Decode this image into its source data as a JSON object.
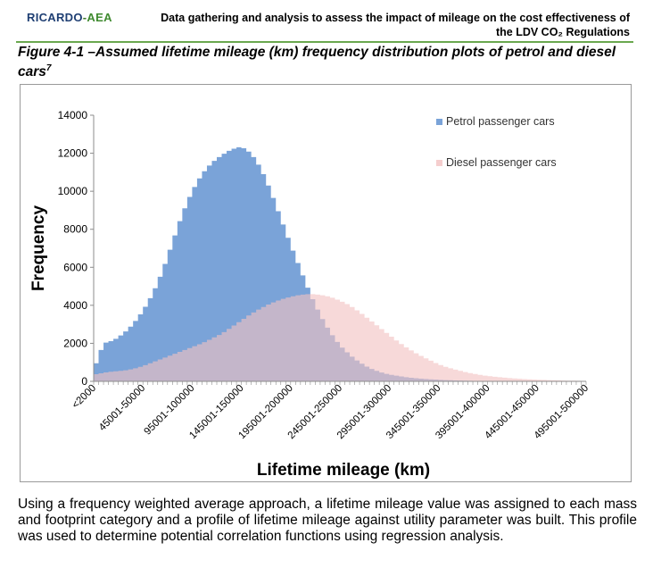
{
  "header": {
    "logo_main": "RICARDO",
    "logo_dash": "-",
    "logo_sub": "AEA",
    "title_line1": "Data gathering and analysis to assess the impact of mileage on the cost effectiveness of",
    "title_line2": "the LDV CO₂ Regulations"
  },
  "figure": {
    "caption": "Figure 4-1 –Assumed lifetime mileage (km) frequency distribution plots of petrol and diesel cars",
    "footnote_ref": "7"
  },
  "chart_data": {
    "type": "area",
    "title": "",
    "xlabel": "Lifetime mileage (km)",
    "ylabel": "Frequency",
    "ylim": [
      0,
      14000
    ],
    "yticks": [
      0,
      2000,
      4000,
      6000,
      8000,
      10000,
      12000,
      14000
    ],
    "x_range": [
      0,
      500000
    ],
    "bin_width": 5000,
    "x_tick_labels": [
      "<2000",
      "45001-50000",
      "95001-100000",
      "145001-150000",
      "195001-200000",
      "245001-250000",
      "295001-300000",
      "345001-350000",
      "395001-400000",
      "445001-450000",
      "495001-500000"
    ],
    "legend_position": "top-right",
    "grid": false,
    "series": [
      {
        "name": "Petrol passenger cars",
        "color": "#7aa3d8",
        "points": [
          [
            0,
            600
          ],
          [
            10000,
            2000
          ],
          [
            20000,
            2150
          ],
          [
            30000,
            2500
          ],
          [
            40000,
            3000
          ],
          [
            50000,
            3700
          ],
          [
            60000,
            4600
          ],
          [
            70000,
            5800
          ],
          [
            80000,
            7300
          ],
          [
            90000,
            8800
          ],
          [
            100000,
            10000
          ],
          [
            110000,
            10900
          ],
          [
            120000,
            11500
          ],
          [
            130000,
            11900
          ],
          [
            140000,
            12200
          ],
          [
            150000,
            12350
          ],
          [
            160000,
            12000
          ],
          [
            170000,
            11200
          ],
          [
            180000,
            10000
          ],
          [
            190000,
            8600
          ],
          [
            200000,
            7200
          ],
          [
            210000,
            5900
          ],
          [
            220000,
            4600
          ],
          [
            230000,
            3500
          ],
          [
            240000,
            2600
          ],
          [
            250000,
            1900
          ],
          [
            260000,
            1400
          ],
          [
            270000,
            1000
          ],
          [
            280000,
            700
          ],
          [
            290000,
            500
          ],
          [
            300000,
            360
          ],
          [
            320000,
            200
          ],
          [
            340000,
            110
          ],
          [
            360000,
            60
          ],
          [
            380000,
            30
          ],
          [
            400000,
            15
          ],
          [
            450000,
            5
          ],
          [
            500000,
            0
          ]
        ]
      },
      {
        "name": "Diesel passenger cars",
        "color": "#f2c2c2",
        "points": [
          [
            0,
            350
          ],
          [
            10000,
            450
          ],
          [
            20000,
            520
          ],
          [
            30000,
            560
          ],
          [
            40000,
            650
          ],
          [
            50000,
            800
          ],
          [
            60000,
            1000
          ],
          [
            70000,
            1200
          ],
          [
            80000,
            1400
          ],
          [
            90000,
            1600
          ],
          [
            100000,
            1800
          ],
          [
            110000,
            2000
          ],
          [
            120000,
            2250
          ],
          [
            130000,
            2500
          ],
          [
            140000,
            2850
          ],
          [
            150000,
            3200
          ],
          [
            160000,
            3550
          ],
          [
            170000,
            3850
          ],
          [
            180000,
            4100
          ],
          [
            190000,
            4300
          ],
          [
            200000,
            4450
          ],
          [
            210000,
            4550
          ],
          [
            220000,
            4600
          ],
          [
            230000,
            4550
          ],
          [
            240000,
            4450
          ],
          [
            250000,
            4250
          ],
          [
            260000,
            4000
          ],
          [
            270000,
            3650
          ],
          [
            280000,
            3250
          ],
          [
            290000,
            2850
          ],
          [
            300000,
            2450
          ],
          [
            310000,
            2050
          ],
          [
            320000,
            1700
          ],
          [
            330000,
            1400
          ],
          [
            340000,
            1150
          ],
          [
            350000,
            900
          ],
          [
            360000,
            720
          ],
          [
            370000,
            580
          ],
          [
            380000,
            460
          ],
          [
            390000,
            360
          ],
          [
            400000,
            280
          ],
          [
            420000,
            180
          ],
          [
            440000,
            110
          ],
          [
            460000,
            70
          ],
          [
            480000,
            40
          ],
          [
            500000,
            20
          ]
        ]
      }
    ]
  },
  "body_text": "Using a frequency weighted average approach, a lifetime mileage value was assigned to each mass and footprint category and a profile of lifetime mileage against utility parameter was built. This profile was used to determine potential correlation functions using regression analysis."
}
